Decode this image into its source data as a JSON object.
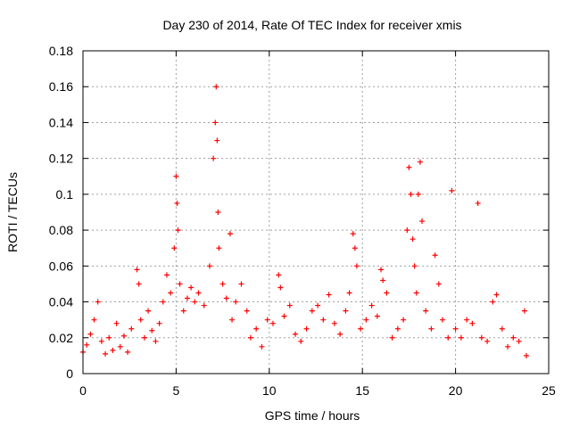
{
  "chart_data": {
    "type": "scatter",
    "title": "Day 230 of 2014, Rate Of TEC Index for receiver xmis",
    "xlabel": "GPS time / hours",
    "ylabel": "ROTI / TECUs",
    "xlim": [
      0,
      25
    ],
    "ylim": [
      0,
      0.18
    ],
    "x_ticks": [
      0,
      5,
      10,
      15,
      20,
      25
    ],
    "x_tick_labels": [
      "0",
      "5",
      "10",
      "15",
      "20",
      "25"
    ],
    "y_ticks": [
      0,
      0.02,
      0.04,
      0.06,
      0.08,
      0.1,
      0.12,
      0.14,
      0.16,
      0.18
    ],
    "y_tick_labels": [
      "0",
      "0.02",
      "0.04",
      "0.06",
      "0.08",
      "0.1",
      "0.12",
      "0.14",
      "0.16",
      "0.18"
    ],
    "grid": true,
    "marker": "+",
    "color": "#ff0000",
    "series": [
      {
        "name": "ROTI",
        "points": [
          [
            0.0,
            0.012
          ],
          [
            0.2,
            0.016
          ],
          [
            0.4,
            0.022
          ],
          [
            0.6,
            0.03
          ],
          [
            0.8,
            0.04
          ],
          [
            1.0,
            0.018
          ],
          [
            1.2,
            0.011
          ],
          [
            1.4,
            0.02
          ],
          [
            1.6,
            0.013
          ],
          [
            1.8,
            0.028
          ],
          [
            2.0,
            0.015
          ],
          [
            2.2,
            0.021
          ],
          [
            2.4,
            0.012
          ],
          [
            2.6,
            0.025
          ],
          [
            2.9,
            0.058
          ],
          [
            3.0,
            0.05
          ],
          [
            3.1,
            0.03
          ],
          [
            3.3,
            0.02
          ],
          [
            3.5,
            0.035
          ],
          [
            3.7,
            0.024
          ],
          [
            3.9,
            0.018
          ],
          [
            4.1,
            0.028
          ],
          [
            4.3,
            0.04
          ],
          [
            4.5,
            0.055
          ],
          [
            4.7,
            0.045
          ],
          [
            4.9,
            0.07
          ],
          [
            5.0,
            0.11
          ],
          [
            5.05,
            0.095
          ],
          [
            5.1,
            0.08
          ],
          [
            5.2,
            0.05
          ],
          [
            5.4,
            0.035
          ],
          [
            5.6,
            0.042
          ],
          [
            5.8,
            0.048
          ],
          [
            6.0,
            0.04
          ],
          [
            6.2,
            0.045
          ],
          [
            6.5,
            0.038
          ],
          [
            6.8,
            0.06
          ],
          [
            7.0,
            0.12
          ],
          [
            7.1,
            0.14
          ],
          [
            7.15,
            0.16
          ],
          [
            7.2,
            0.13
          ],
          [
            7.25,
            0.09
          ],
          [
            7.3,
            0.07
          ],
          [
            7.5,
            0.05
          ],
          [
            7.7,
            0.042
          ],
          [
            7.9,
            0.078
          ],
          [
            8.0,
            0.03
          ],
          [
            8.2,
            0.04
          ],
          [
            8.5,
            0.05
          ],
          [
            8.8,
            0.035
          ],
          [
            9.0,
            0.02
          ],
          [
            9.3,
            0.025
          ],
          [
            9.6,
            0.015
          ],
          [
            9.9,
            0.03
          ],
          [
            10.2,
            0.028
          ],
          [
            10.5,
            0.055
          ],
          [
            10.6,
            0.048
          ],
          [
            10.8,
            0.032
          ],
          [
            11.1,
            0.038
          ],
          [
            11.4,
            0.022
          ],
          [
            11.7,
            0.018
          ],
          [
            12.0,
            0.025
          ],
          [
            12.3,
            0.035
          ],
          [
            12.6,
            0.038
          ],
          [
            12.9,
            0.03
          ],
          [
            13.2,
            0.044
          ],
          [
            13.5,
            0.028
          ],
          [
            13.8,
            0.022
          ],
          [
            14.1,
            0.035
          ],
          [
            14.3,
            0.045
          ],
          [
            14.5,
            0.078
          ],
          [
            14.6,
            0.07
          ],
          [
            14.7,
            0.06
          ],
          [
            14.9,
            0.025
          ],
          [
            15.2,
            0.03
          ],
          [
            15.5,
            0.038
          ],
          [
            15.8,
            0.032
          ],
          [
            16.0,
            0.058
          ],
          [
            16.1,
            0.052
          ],
          [
            16.3,
            0.045
          ],
          [
            16.6,
            0.02
          ],
          [
            16.9,
            0.025
          ],
          [
            17.2,
            0.03
          ],
          [
            17.4,
            0.08
          ],
          [
            17.5,
            0.115
          ],
          [
            17.6,
            0.1
          ],
          [
            17.7,
            0.075
          ],
          [
            17.8,
            0.06
          ],
          [
            17.9,
            0.045
          ],
          [
            18.0,
            0.1
          ],
          [
            18.1,
            0.118
          ],
          [
            18.2,
            0.085
          ],
          [
            18.4,
            0.035
          ],
          [
            18.7,
            0.025
          ],
          [
            18.9,
            0.066
          ],
          [
            19.1,
            0.05
          ],
          [
            19.3,
            0.03
          ],
          [
            19.6,
            0.02
          ],
          [
            19.8,
            0.102
          ],
          [
            20.0,
            0.025
          ],
          [
            20.3,
            0.02
          ],
          [
            20.6,
            0.03
          ],
          [
            20.9,
            0.028
          ],
          [
            21.2,
            0.095
          ],
          [
            21.4,
            0.02
          ],
          [
            21.7,
            0.018
          ],
          [
            22.0,
            0.04
          ],
          [
            22.2,
            0.044
          ],
          [
            22.5,
            0.025
          ],
          [
            22.8,
            0.015
          ],
          [
            23.1,
            0.02
          ],
          [
            23.4,
            0.018
          ],
          [
            23.7,
            0.035
          ],
          [
            23.8,
            0.01
          ]
        ]
      }
    ]
  }
}
